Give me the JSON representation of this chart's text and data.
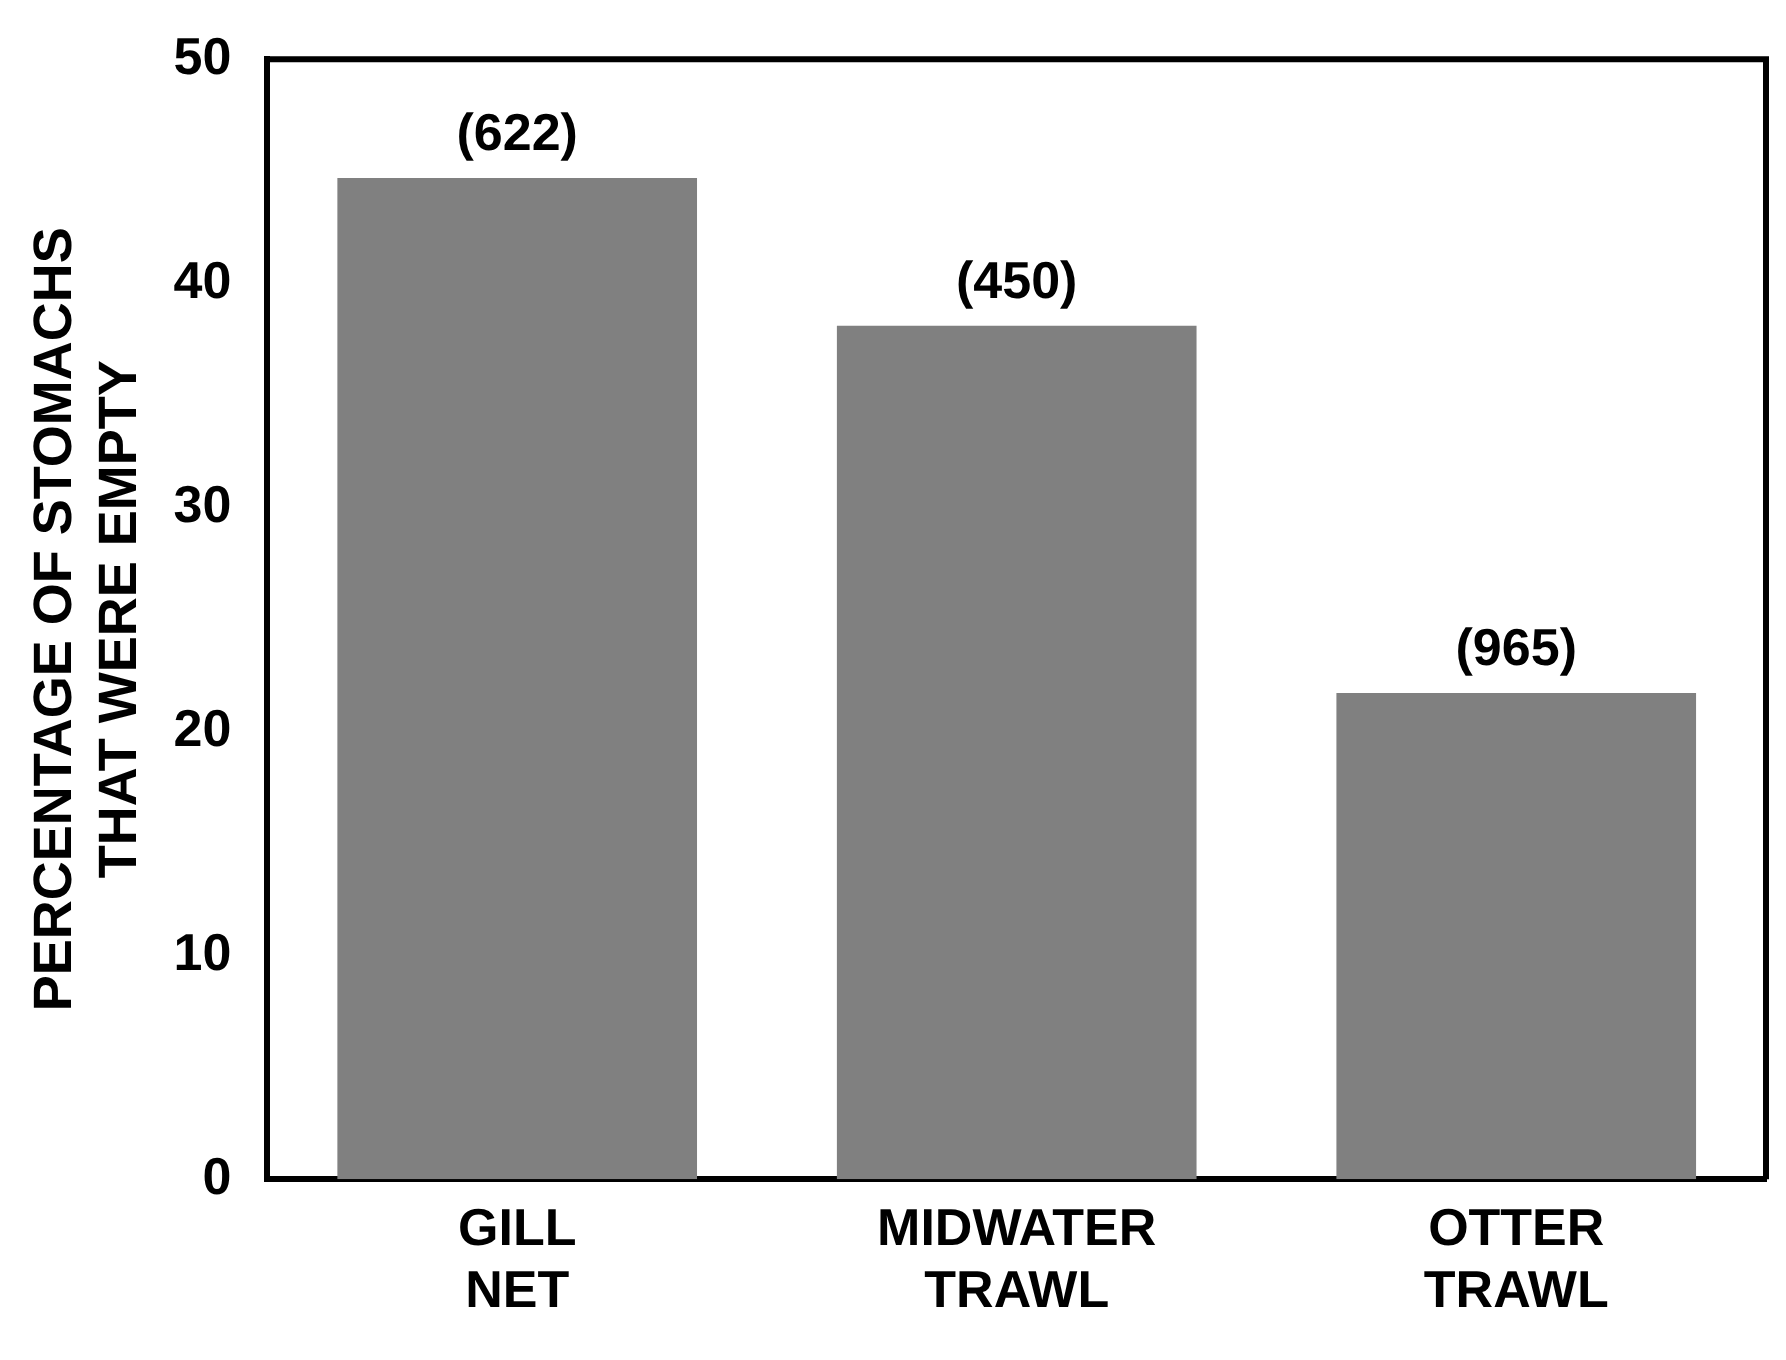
{
  "chart_data": {
    "type": "bar",
    "ylabel": "PERCENTAGE OF STOMACHS\nTHAT WERE EMPTY",
    "categories": [
      "GILL\nNET",
      "MIDWATER\nTRAWL",
      "OTTER\nTRAWL"
    ],
    "values": [
      44.7,
      38.1,
      21.7
    ],
    "annotations": [
      {
        "text": "(622)",
        "x": "GILL\nNET",
        "y": 44.7
      },
      {
        "text": "(450)",
        "x": "MIDWATER\nTRAWL",
        "y": 38.1
      },
      {
        "text": "(965)",
        "x": "OTTER\nTRAWL",
        "y": 21.7
      }
    ],
    "color": "#808080",
    "ylim": [
      0,
      50
    ],
    "yticks": [
      0,
      10,
      20,
      30,
      40,
      50
    ]
  }
}
